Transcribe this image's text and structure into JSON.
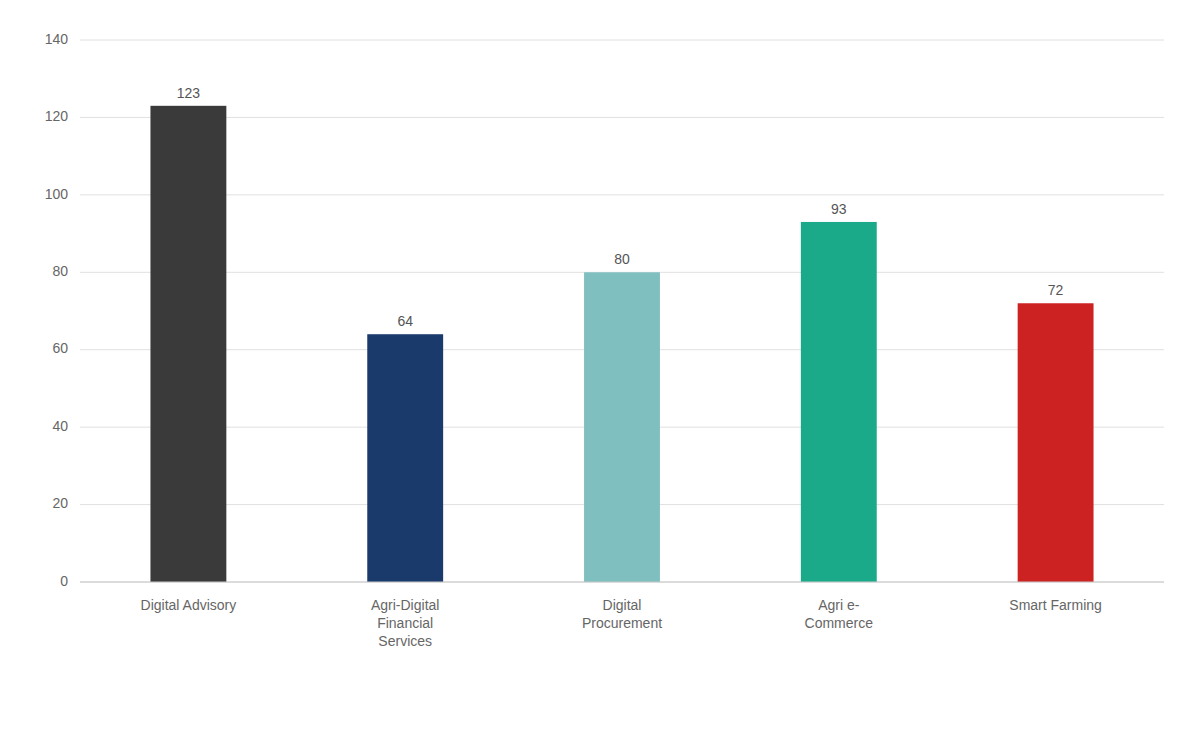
{
  "chart_data": {
    "type": "bar",
    "categories": [
      "Digital Advisory",
      "Agri-Digital\nFinancial\nServices",
      "Digital\nProcurement",
      "Agri e-\nCommerce",
      "Smart Farming"
    ],
    "values": [
      123,
      64,
      80,
      93,
      72
    ],
    "colors": [
      "#3a3a3a",
      "#1a3a6b",
      "#7fbfbf",
      "#1aaa8a",
      "#cc2222"
    ],
    "ylim": [
      0,
      140
    ],
    "yticks": [
      0,
      20,
      40,
      60,
      80,
      100,
      120,
      140
    ],
    "grid": true,
    "data_labels": true
  }
}
